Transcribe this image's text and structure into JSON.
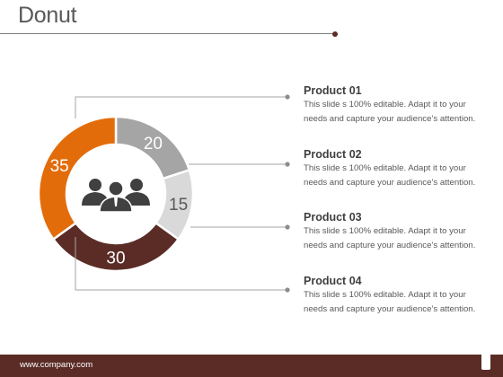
{
  "slide": {
    "title": "Donut",
    "footer_url": "www.company.com"
  },
  "chart_data": {
    "type": "pie",
    "variant": "donut",
    "title": "",
    "values": [
      20,
      15,
      30,
      35
    ],
    "labels": [
      "20",
      "15",
      "30",
      "35"
    ],
    "colors": [
      "#a5a5a5",
      "#d9d9d9",
      "#5b2c26",
      "#e36c0a"
    ],
    "start_angle_deg": 0,
    "center_icon": "people-group-icon"
  },
  "legend": [
    {
      "title": "Product 01",
      "desc1": "This slide s 100% editable. Adapt it to your",
      "desc2": "needs and capture your audience’s attention."
    },
    {
      "title": "Product 02",
      "desc1": "This slide s 100% editable. Adapt it to your",
      "desc2": "needs and capture your audience’s attention."
    },
    {
      "title": "Product 03",
      "desc1": "This slide s 100% editable. Adapt it to your",
      "desc2": "needs and capture your audience’s attention."
    },
    {
      "title": "Product 04",
      "desc1": "This slide s 100% editable. Adapt it to your",
      "desc2": "needs and capture your audience’s attention."
    }
  ]
}
